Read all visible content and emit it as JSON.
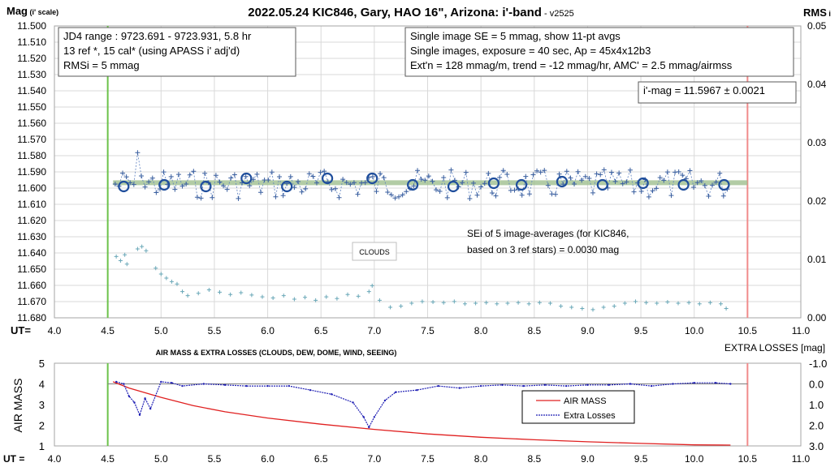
{
  "chart_data": [
    {
      "type": "scatter",
      "title": "2022.05.24 KIC846, Gary, HAO 16\", Arizona: i'-band",
      "version": "- v2525",
      "ylabel_main": "Mag",
      "ylabel_sub": "(i' scale)",
      "y2label_main": "RMS",
      "y2label_sub": "i",
      "xlabel": "UT=",
      "xlim": [
        4.0,
        11.0
      ],
      "ylim": [
        11.5,
        11.68
      ],
      "y_inverted": true,
      "y2lim": [
        0.0,
        0.05
      ],
      "x_ticks": [
        "4.0",
        "4.5",
        "5.0",
        "5.5",
        "6.0",
        "6.5",
        "7.0",
        "7.5",
        "8.0",
        "8.5",
        "9.0",
        "9.5",
        "10.0",
        "10.5",
        "11.0"
      ],
      "y_ticks": [
        "11.500",
        "11.510",
        "11.520",
        "11.530",
        "11.540",
        "11.550",
        "11.560",
        "11.570",
        "11.580",
        "11.590",
        "11.600",
        "11.610",
        "11.620",
        "11.630",
        "11.640",
        "11.650",
        "11.660",
        "11.670",
        "11.680"
      ],
      "y2_ticks": [
        "0.00",
        "0.01",
        "0.02",
        "0.03",
        "0.04",
        "0.05"
      ],
      "grid": true,
      "fit_level": 11.5967,
      "averages": {
        "name": "11-pt avgs",
        "color": "#1f4e9c",
        "x": [
          4.65,
          5.03,
          5.42,
          5.8,
          6.18,
          6.56,
          6.98,
          7.36,
          7.74,
          8.12,
          8.38,
          8.76,
          9.14,
          9.52,
          9.9,
          10.28
        ],
        "y": [
          11.599,
          11.598,
          11.599,
          11.594,
          11.599,
          11.594,
          11.594,
          11.598,
          11.599,
          11.597,
          11.598,
          11.596,
          11.598,
          11.597,
          11.598,
          11.598
        ]
      },
      "rms_points": {
        "x": [
          4.58,
          4.62,
          4.66,
          4.68,
          4.78,
          4.82,
          4.86,
          4.95,
          5.0,
          5.05,
          5.1,
          5.15,
          5.2,
          5.25,
          5.35,
          5.45,
          5.55,
          5.65,
          5.75,
          5.85,
          5.95,
          6.05,
          6.15,
          6.25,
          6.35,
          6.45,
          6.55,
          6.65,
          6.75,
          6.85,
          6.95,
          6.98,
          7.05,
          7.15,
          7.25,
          7.35,
          7.45,
          7.55,
          7.65,
          7.75,
          7.85,
          7.95,
          8.05,
          8.15,
          8.25,
          8.35,
          8.45,
          8.55,
          8.65,
          8.75,
          8.85,
          8.95,
          9.05,
          9.15,
          9.25,
          9.35,
          9.45,
          9.55,
          9.65,
          9.75,
          9.85,
          9.95,
          10.05,
          10.15,
          10.25,
          10.3
        ],
        "y": [
          0.0105,
          0.0098,
          0.0108,
          0.0092,
          0.0118,
          0.0122,
          0.0115,
          0.0085,
          0.0075,
          0.0068,
          0.0062,
          0.0058,
          0.0045,
          0.0038,
          0.0042,
          0.0048,
          0.0044,
          0.004,
          0.0043,
          0.0039,
          0.0036,
          0.0034,
          0.0038,
          0.0032,
          0.0035,
          0.003,
          0.0036,
          0.0033,
          0.004,
          0.0037,
          0.0045,
          0.0055,
          0.003,
          0.0018,
          0.002,
          0.0025,
          0.0028,
          0.0027,
          0.0026,
          0.0028,
          0.0024,
          0.0025,
          0.0026,
          0.0024,
          0.0025,
          0.0026,
          0.0024,
          0.0026,
          0.0025,
          0.002,
          0.0018,
          0.0016,
          0.0014,
          0.0018,
          0.002,
          0.0025,
          0.0028,
          0.0026,
          0.0025,
          0.0027,
          0.0025,
          0.0026,
          0.0024,
          0.0026,
          0.0024,
          0.0016
        ]
      },
      "vlines": [
        {
          "x": 4.5,
          "color": "#6cc24a"
        },
        {
          "x": 10.5,
          "color": "#f08a8a"
        }
      ],
      "annotations": {
        "box1": [
          "JD4 range : 9723.691 - 9723.931, 5.8  hr",
          "13 ref *, 15 cal* (using APASS i' adj'd)",
          "RMSi = 5 mmag"
        ],
        "box2": [
          "Single image SE = 5 mmag, show 11-pt avgs",
          "Single images, exposure = 40 sec, Ap = 45x4x12b3",
          "Ext'n = 128 mmag/m, trend = -12 mmag/hr, AMC' = 2.5 mmag/airmss"
        ],
        "box3": "i'-mag = 11.5967 ± 0.0021",
        "sei": [
          "SEi of 5 image-averages (for KIC846,",
          "based on 3 ref stars) = 0.0030 mag"
        ],
        "clouds": "CLOUDS"
      }
    },
    {
      "type": "line",
      "title": "AIR MASS & EXTRA LOSSES (CLOUDS, DEW, DOME, WIND, SEEING)",
      "ylabel": "AIR MASS",
      "y2label": "EXTRA LOSSES [mag]",
      "xlabel": "UT =",
      "xlim": [
        4.0,
        11.0
      ],
      "ylim": [
        1,
        5
      ],
      "y2lim": [
        -1.0,
        3.0
      ],
      "y2_inverted": true,
      "x_ticks": [
        "4.0",
        "4.5",
        "5.0",
        "5.5",
        "6.0",
        "6.5",
        "7.0",
        "7.5",
        "8.0",
        "8.5",
        "9.0",
        "9.5",
        "10.0",
        "10.5",
        "11.0"
      ],
      "y_ticks": [
        "1",
        "2",
        "3",
        "4",
        "5"
      ],
      "y2_ticks": [
        "-1.0",
        "0.0",
        "1.0",
        "2.0",
        "3.0"
      ],
      "legend": "center-right",
      "series": [
        {
          "name": "AIR MASS",
          "color": "#e02020",
          "x": [
            4.55,
            4.7,
            5.0,
            5.3,
            5.6,
            6.0,
            6.5,
            7.0,
            7.5,
            8.0,
            8.5,
            9.0,
            9.5,
            10.0,
            10.34
          ],
          "y": [
            4.1,
            3.8,
            3.35,
            2.95,
            2.65,
            2.35,
            2.05,
            1.8,
            1.58,
            1.42,
            1.3,
            1.2,
            1.12,
            1.05,
            1.04
          ]
        },
        {
          "name": "Extra Losses",
          "color": "#1f1fb4",
          "x": [
            4.58,
            4.65,
            4.7,
            4.75,
            4.8,
            4.85,
            4.9,
            5.0,
            5.1,
            5.2,
            5.4,
            5.6,
            5.8,
            6.0,
            6.2,
            6.4,
            6.6,
            6.8,
            6.9,
            6.95,
            7.0,
            7.1,
            7.2,
            7.4,
            7.6,
            7.8,
            8.0,
            8.2,
            8.4,
            8.6,
            8.8,
            9.0,
            9.2,
            9.4,
            9.6,
            9.8,
            10.0,
            10.2,
            10.34
          ],
          "y": [
            -0.1,
            0.0,
            0.6,
            0.9,
            1.5,
            0.7,
            1.2,
            -0.1,
            -0.05,
            0.1,
            0.0,
            0.05,
            0.1,
            0.1,
            0.1,
            0.3,
            0.5,
            0.9,
            1.6,
            2.1,
            1.6,
            0.8,
            0.4,
            0.3,
            0.1,
            0.2,
            0.1,
            0.05,
            0.1,
            0.05,
            0.1,
            0.05,
            0.05,
            0.0,
            0.1,
            0.0,
            -0.05,
            -0.05,
            0.0
          ]
        }
      ]
    }
  ]
}
